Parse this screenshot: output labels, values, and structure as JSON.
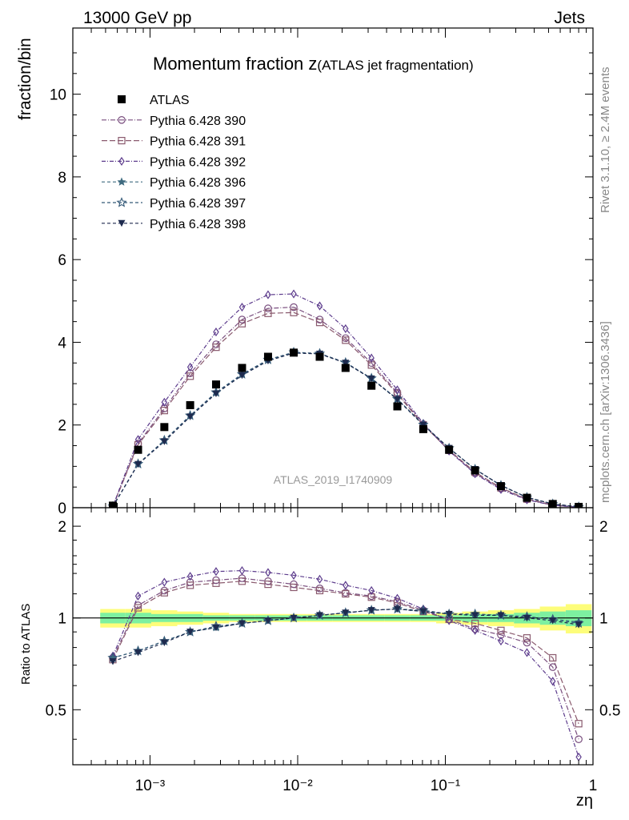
{
  "header": {
    "left": "13000 GeV pp",
    "right": "Jets"
  },
  "side": {
    "rivet": "Rivet 3.1.10, ≥ 2.4M events",
    "mcplots": "mcplots.cern.ch [arXiv:1306.3436]"
  },
  "chart_data": {
    "type": "scatter",
    "title_main": "Momentum fraction z",
    "title_sub": "(ATLAS jet fragmentation)",
    "watermark": "ATLAS_2019_I1740909",
    "xlabel": "zη",
    "ylabel": "fraction/bin",
    "ratio_ylabel": "Ratio to ATLAS",
    "x_scale": "log",
    "xlim": [
      0.0003,
      1
    ],
    "ylim": [
      0,
      11.6
    ],
    "ratio_ylim": [
      0.33,
      2.3
    ],
    "x_tick_labels": [
      "10⁻³",
      "10⁻²",
      "10⁻¹",
      "1"
    ],
    "y_tick_labels": [
      "0",
      "2",
      "4",
      "6",
      "8",
      "10"
    ],
    "ratio_tick_labels": [
      "0.5",
      "1",
      "2"
    ],
    "legend_placement": "top-left",
    "x": [
      0.00056,
      0.00083,
      0.00125,
      0.00187,
      0.0028,
      0.0042,
      0.0063,
      0.0094,
      0.0141,
      0.0211,
      0.0316,
      0.0473,
      0.0709,
      0.106,
      0.159,
      0.238,
      0.357,
      0.534,
      0.8
    ],
    "data": {
      "name": "ATLAS",
      "values": [
        0.05,
        1.4,
        1.95,
        2.48,
        2.98,
        3.38,
        3.65,
        3.75,
        3.65,
        3.38,
        2.95,
        2.45,
        1.9,
        1.4,
        0.9,
        0.52,
        0.24,
        0.09,
        0.02
      ],
      "band_inner": [
        0.04,
        0.04,
        0.03,
        0.03,
        0.02,
        0.02,
        0.02,
        0.02,
        0.02,
        0.02,
        0.02,
        0.02,
        0.02,
        0.02,
        0.03,
        0.03,
        0.04,
        0.05,
        0.06
      ],
      "band_outer": [
        0.07,
        0.07,
        0.06,
        0.05,
        0.04,
        0.03,
        0.03,
        0.03,
        0.03,
        0.03,
        0.03,
        0.03,
        0.03,
        0.04,
        0.05,
        0.06,
        0.07,
        0.09,
        0.11
      ]
    },
    "series": [
      {
        "name": "Pythia 6.428 390",
        "color": "#7a4f7f",
        "marker": "circle-open",
        "dash": "6 2 1 2",
        "values": [
          0.03,
          1.55,
          2.4,
          3.25,
          3.95,
          4.55,
          4.82,
          4.85,
          4.55,
          4.1,
          3.5,
          2.78,
          2.02,
          1.38,
          0.83,
          0.46,
          0.2,
          0.06,
          0.01
        ],
        "ratio": [
          0.74,
          1.1,
          1.23,
          1.31,
          1.33,
          1.35,
          1.32,
          1.29,
          1.25,
          1.21,
          1.18,
          1.13,
          1.06,
          0.99,
          0.92,
          0.88,
          0.83,
          0.69,
          0.4
        ]
      },
      {
        "name": "Pythia 6.428 391",
        "color": "#8a5a6e",
        "marker": "square-open",
        "dash": "7 3",
        "values": [
          0.03,
          1.52,
          2.35,
          3.18,
          3.88,
          4.45,
          4.7,
          4.72,
          4.48,
          4.05,
          3.45,
          2.75,
          2.0,
          1.39,
          0.86,
          0.48,
          0.21,
          0.07,
          0.01
        ],
        "ratio": [
          0.73,
          1.08,
          1.21,
          1.28,
          1.3,
          1.32,
          1.29,
          1.26,
          1.23,
          1.2,
          1.17,
          1.12,
          1.05,
          0.99,
          0.96,
          0.91,
          0.86,
          0.74,
          0.45
        ]
      },
      {
        "name": "Pythia 6.428 392",
        "color": "#5c3b8c",
        "marker": "diamond-open",
        "dash": "5 2 1 2",
        "values": [
          0.03,
          1.65,
          2.55,
          3.4,
          4.25,
          4.85,
          5.15,
          5.17,
          4.88,
          4.33,
          3.62,
          2.85,
          2.04,
          1.37,
          0.82,
          0.44,
          0.19,
          0.06,
          0.01
        ],
        "ratio": [
          0.75,
          1.18,
          1.31,
          1.37,
          1.42,
          1.43,
          1.41,
          1.38,
          1.34,
          1.28,
          1.23,
          1.16,
          1.07,
          0.98,
          0.91,
          0.84,
          0.77,
          0.62,
          0.35
        ]
      },
      {
        "name": "Pythia 6.428 396",
        "color": "#3f6b80",
        "marker": "star-filled",
        "dash": "4 3",
        "values": [
          0.03,
          1.05,
          1.62,
          2.22,
          2.78,
          3.22,
          3.57,
          3.75,
          3.72,
          3.5,
          3.12,
          2.62,
          2.0,
          1.44,
          0.93,
          0.54,
          0.25,
          0.09,
          0.02
        ],
        "ratio": [
          0.74,
          0.78,
          0.84,
          0.9,
          0.93,
          0.96,
          0.98,
          1.0,
          1.02,
          1.04,
          1.06,
          1.07,
          1.05,
          1.03,
          1.03,
          1.02,
          1.01,
          0.99,
          0.97
        ]
      },
      {
        "name": "Pythia 6.428 397",
        "color": "#355a78",
        "marker": "star-open",
        "dash": "4 3",
        "values": [
          0.03,
          1.06,
          1.63,
          2.23,
          2.79,
          3.23,
          3.58,
          3.76,
          3.73,
          3.51,
          3.13,
          2.63,
          2.01,
          1.44,
          0.93,
          0.54,
          0.25,
          0.09,
          0.02
        ],
        "ratio": [
          0.74,
          0.78,
          0.84,
          0.9,
          0.94,
          0.96,
          0.98,
          1.0,
          1.02,
          1.04,
          1.06,
          1.07,
          1.06,
          1.03,
          1.03,
          1.02,
          1.01,
          0.99,
          0.96
        ]
      },
      {
        "name": "Pythia 6.428 398",
        "color": "#1e2a4e",
        "marker": "triangle-down-filled",
        "dash": "4 3",
        "values": [
          0.03,
          1.05,
          1.6,
          2.2,
          2.76,
          3.2,
          3.55,
          3.74,
          3.72,
          3.5,
          3.12,
          2.62,
          2.0,
          1.44,
          0.93,
          0.54,
          0.25,
          0.09,
          0.02
        ],
        "ratio": [
          0.72,
          0.77,
          0.83,
          0.9,
          0.93,
          0.96,
          0.98,
          1.0,
          1.02,
          1.04,
          1.06,
          1.07,
          1.05,
          1.03,
          1.02,
          1.02,
          1.0,
          0.98,
          0.95
        ]
      }
    ]
  }
}
